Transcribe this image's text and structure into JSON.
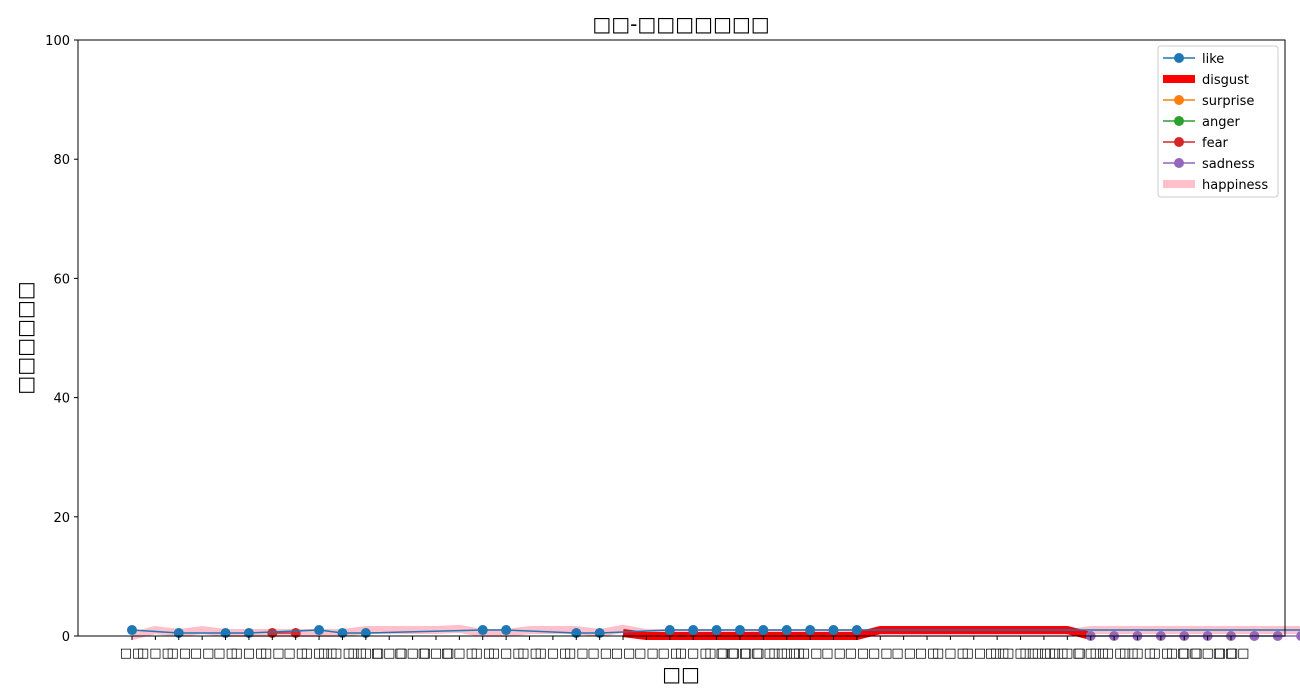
{
  "chart_data": {
    "type": "line",
    "title": "□□-□□□□□□□",
    "xlabel": "□□",
    "ylabel": "□□□□□□",
    "ylim": [
      0,
      100
    ],
    "yticks": [
      0,
      20,
      40,
      60,
      80,
      100
    ],
    "legend_position": "top-right",
    "grid": false,
    "categories": [
      "□□",
      "□□□",
      "□□",
      "□□",
      "□□",
      "□□□",
      "□□",
      "□□",
      "□□□",
      "□□□□",
      "□□□",
      "□□□",
      "□□□",
      "□□□",
      "□□□",
      "□□",
      "□□□",
      "□□",
      "□□□",
      "□□",
      "□□",
      "□□",
      "□□",
      "□□",
      "□□□",
      "□□",
      "□□□□",
      "□□□□□□",
      "□□□",
      "□□",
      "□□",
      "□□",
      "□□",
      "□□",
      "□□",
      "□□□",
      "□□",
      "□□",
      "□□□□□",
      "□□□□",
      "□□□",
      "□□□",
      "□□□□",
      "□□□",
      "□□",
      "□□□",
      "□□□□□",
      "□□□"
    ],
    "series": [
      {
        "name": "like",
        "color": "#1f77b4",
        "marker": true,
        "linewidth": 1.5,
        "points": [
          [
            0,
            1
          ],
          [
            2,
            0.5
          ],
          [
            4,
            0.5
          ],
          [
            5,
            0.5
          ],
          [
            8,
            1
          ],
          [
            9,
            0.5
          ],
          [
            10,
            0.5
          ],
          [
            15,
            1
          ],
          [
            16,
            1
          ],
          [
            19,
            0.5
          ],
          [
            20,
            0.5
          ],
          [
            23,
            1
          ],
          [
            24,
            1
          ],
          [
            25,
            1
          ],
          [
            26,
            1
          ],
          [
            27,
            1
          ],
          [
            28,
            1
          ],
          [
            29,
            1
          ],
          [
            30,
            1
          ],
          [
            31,
            1
          ],
          [
            53,
            1
          ],
          [
            54,
            1
          ],
          [
            55,
            1
          ]
        ]
      },
      {
        "name": "disgust",
        "color": "#ff0000",
        "marker": false,
        "linewidth": 8,
        "points": [
          [
            21,
            0.5
          ],
          [
            22,
            0
          ],
          [
            31,
            0
          ],
          [
            32,
            1
          ],
          [
            40,
            1
          ],
          [
            41,
            0
          ]
        ]
      },
      {
        "name": "surprise",
        "color": "#ff7f0e",
        "marker": true,
        "linewidth": 1.5,
        "points": []
      },
      {
        "name": "anger",
        "color": "#2ca02c",
        "marker": true,
        "linewidth": 1.5,
        "points": []
      },
      {
        "name": "fear",
        "color": "#d62728",
        "marker": true,
        "linewidth": 1.5,
        "points": [
          [
            6,
            0.5
          ],
          [
            7,
            0.5
          ]
        ]
      },
      {
        "name": "sadness",
        "color": "#9467bd",
        "marker": true,
        "linewidth": 1.5,
        "points": [
          [
            41,
            0
          ],
          [
            42,
            0
          ],
          [
            43,
            0
          ],
          [
            44,
            0
          ],
          [
            45,
            0
          ],
          [
            46,
            0
          ],
          [
            47,
            0
          ],
          [
            48,
            0
          ],
          [
            49,
            0
          ],
          [
            50,
            0
          ],
          [
            51,
            0
          ],
          [
            52,
            0
          ],
          [
            53,
            1
          ],
          [
            54,
            1
          ],
          [
            55,
            1
          ]
        ]
      },
      {
        "name": "happiness",
        "color": "#ffc0cb",
        "marker": false,
        "linewidth": 8,
        "points": [
          [
            0,
            0
          ],
          [
            1,
            1
          ],
          [
            2,
            0.5
          ],
          [
            3,
            1
          ],
          [
            4,
            0.5
          ],
          [
            5,
            0.5
          ],
          [
            6,
            0.5
          ],
          [
            7,
            0.5
          ],
          [
            8,
            0.5
          ],
          [
            9,
            0.5
          ],
          [
            10,
            1
          ],
          [
            11,
            1
          ],
          [
            12,
            1
          ],
          [
            13,
            1
          ],
          [
            14,
            1.2
          ],
          [
            15,
            0.5
          ],
          [
            16,
            0.5
          ],
          [
            17,
            1
          ],
          [
            18,
            1
          ],
          [
            19,
            1
          ],
          [
            20,
            0.5
          ],
          [
            21,
            1.2
          ],
          [
            22,
            0.5
          ],
          [
            23,
            0.5
          ],
          [
            24,
            0.5
          ],
          [
            25,
            0.5
          ],
          [
            26,
            0.5
          ],
          [
            27,
            0.5
          ],
          [
            28,
            0.5
          ],
          [
            29,
            0.5
          ],
          [
            30,
            0.5
          ],
          [
            31,
            0.5
          ],
          [
            32,
            0.5
          ],
          [
            33,
            0.5
          ],
          [
            34,
            0.5
          ],
          [
            35,
            0.5
          ],
          [
            36,
            0.5
          ],
          [
            37,
            0.5
          ],
          [
            38,
            0.5
          ],
          [
            39,
            0.5
          ],
          [
            40,
            0.5
          ],
          [
            41,
            1
          ],
          [
            42,
            1
          ],
          [
            43,
            1
          ],
          [
            44,
            1
          ],
          [
            45,
            1
          ],
          [
            46,
            1
          ],
          [
            47,
            1
          ],
          [
            48,
            1
          ],
          [
            49,
            1
          ],
          [
            50,
            1
          ],
          [
            51,
            1
          ],
          [
            52,
            1
          ],
          [
            53,
            0.5
          ],
          [
            54,
            0.5
          ],
          [
            55,
            0.5
          ]
        ]
      }
    ]
  }
}
